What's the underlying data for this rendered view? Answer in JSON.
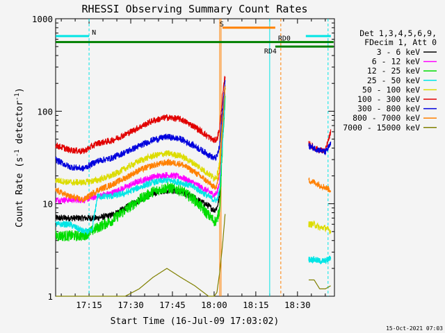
{
  "chart_data": {
    "type": "line",
    "title": "RHESSI Observing Summary Count Rates",
    "xlabel": "Start Time (16-Jul-09 17:03:02)",
    "ylabel": "Count Rate (s-1 detector-1)",
    "ylabel_parts": [
      "Count Rate (s",
      "-1",
      " detector",
      "-1",
      ")"
    ],
    "yscale": "log",
    "ylim": [
      1,
      1000
    ],
    "xlim": [
      "17:03",
      "18:43"
    ],
    "x_ticks": [
      "17:15",
      "17:30",
      "17:45",
      "18:00",
      "18:15",
      "18:30"
    ],
    "y_ticks": [
      "1",
      "10",
      "100",
      "1000"
    ],
    "legend_header": [
      "Det 1,3,4,5,6,9,",
      "FDecim 1, Att 0"
    ],
    "legend_position": "right",
    "footer_date": "15-Oct-2021 07:03",
    "gaps": [
      [
        "18:05",
        "18:34"
      ]
    ],
    "series": [
      {
        "name": "3 - 6 keV",
        "color": "#000000",
        "x": [
          "17:03",
          "17:08",
          "17:13",
          "17:18",
          "17:23",
          "17:28",
          "17:33",
          "17:38",
          "17:43",
          "17:48",
          "17:53",
          "17:58",
          "18:00",
          "18:01",
          "18:02",
          "18:03",
          "18:04"
        ],
        "y": [
          7.0,
          7.0,
          7.0,
          7.0,
          7.5,
          9,
          11,
          13,
          14,
          13.5,
          11.5,
          9.5,
          8.5,
          9.0,
          12,
          60,
          180
        ]
      },
      {
        "name": "6 - 12 keV",
        "color": "#ff00ff",
        "x": [
          "17:03",
          "17:08",
          "17:13",
          "17:18",
          "17:23",
          "17:28",
          "17:33",
          "17:38",
          "17:43",
          "17:48",
          "17:53",
          "17:58",
          "18:00",
          "18:01",
          "18:02",
          "18:03",
          "18:04"
        ],
        "y": [
          11,
          11,
          11,
          12,
          13,
          15,
          17.5,
          19.5,
          20.5,
          19.5,
          16.5,
          13.5,
          12.5,
          13,
          18,
          70,
          200
        ]
      },
      {
        "name": "12 - 25 keV",
        "color": "#00dd00",
        "x": [
          "17:03",
          "17:08",
          "17:13",
          "17:18",
          "17:23",
          "17:28",
          "17:33",
          "17:38",
          "17:43",
          "17:48",
          "17:53",
          "17:58",
          "18:00",
          "18:01",
          "18:02",
          "18:03",
          "18:04"
        ],
        "y": [
          4.5,
          4.5,
          4.5,
          5.5,
          6.5,
          8.5,
          11,
          13.5,
          15,
          14,
          11,
          7.5,
          6.5,
          6.5,
          9,
          40,
          150
        ]
      },
      {
        "name": "25 - 50 keV",
        "color": "#00e5e5",
        "x": [
          "17:03",
          "17:08",
          "17:13",
          "17:16",
          "17:18",
          "17:23",
          "17:28",
          "17:33",
          "17:38",
          "17:43",
          "17:48",
          "17:53",
          "17:58",
          "18:00",
          "18:01",
          "18:02",
          "18:03",
          "18:04",
          "18:34",
          "18:36",
          "18:38",
          "18:40",
          "18:42"
        ],
        "y": [
          6,
          6,
          5,
          5,
          12,
          12,
          13,
          15,
          17,
          18,
          17,
          15,
          12,
          11,
          11,
          14,
          45,
          160,
          2.5,
          2.5,
          2.4,
          2.4,
          2.6
        ]
      },
      {
        "name": "50 - 100 keV",
        "color": "#dcdc00",
        "x": [
          "17:03",
          "17:08",
          "17:13",
          "17:18",
          "17:23",
          "17:28",
          "17:33",
          "17:38",
          "17:43",
          "17:48",
          "17:53",
          "17:58",
          "18:00",
          "18:01",
          "18:02",
          "18:03",
          "18:04",
          "18:34",
          "18:36",
          "18:38",
          "18:40",
          "18:42"
        ],
        "y": [
          18,
          17,
          17,
          18,
          20,
          24,
          29,
          33,
          35,
          33,
          27,
          21,
          19,
          20,
          28,
          80,
          200,
          6,
          6,
          5.5,
          5.5,
          5
        ]
      },
      {
        "name": "100 - 300 keV",
        "color": "#e10000",
        "x": [
          "17:03",
          "17:08",
          "17:13",
          "17:18",
          "17:23",
          "17:28",
          "17:33",
          "17:38",
          "17:43",
          "17:48",
          "17:53",
          "17:58",
          "18:00",
          "18:01",
          "18:02",
          "18:03",
          "18:04",
          "18:34",
          "18:36",
          "18:38",
          "18:40",
          "18:42"
        ],
        "y": [
          43,
          38,
          37,
          45,
          48,
          56,
          67,
          79,
          86,
          82,
          68,
          53,
          48,
          50,
          65,
          140,
          250,
          45,
          40,
          38,
          37,
          60
        ]
      },
      {
        "name": "300 - 800 keV",
        "color": "#0000dd",
        "x": [
          "17:03",
          "17:08",
          "17:13",
          "17:18",
          "17:23",
          "17:28",
          "17:33",
          "17:38",
          "17:43",
          "17:48",
          "17:53",
          "17:58",
          "18:00",
          "18:01",
          "18:02",
          "18:03",
          "18:04",
          "18:34",
          "18:36",
          "18:38",
          "18:40",
          "18:42"
        ],
        "y": [
          30,
          25,
          24,
          29,
          31,
          36,
          42,
          49,
          53,
          50,
          42,
          34,
          31,
          32,
          42,
          100,
          220,
          42,
          40,
          38,
          36,
          44
        ]
      },
      {
        "name": "800 - 7000 keV",
        "color": "#ff8000",
        "x": [
          "17:03",
          "17:08",
          "17:13",
          "17:18",
          "17:23",
          "17:28",
          "17:33",
          "17:38",
          "17:43",
          "17:48",
          "17:53",
          "17:58",
          "18:00",
          "18:01",
          "18:02",
          "18:03",
          "18:04",
          "18:34",
          "18:36",
          "18:38",
          "18:40",
          "18:42"
        ],
        "y": [
          14,
          12,
          11,
          14,
          16,
          19,
          23,
          26,
          28,
          27,
          22,
          17,
          15,
          16,
          22,
          70,
          200,
          18,
          17,
          16,
          15,
          14
        ]
      },
      {
        "name": "7000 - 15000 keV",
        "color": "#808000",
        "x": [
          "17:03",
          "17:08",
          "17:13",
          "17:18",
          "17:23",
          "17:28",
          "17:33",
          "17:38",
          "17:43",
          "17:48",
          "17:53",
          "17:58",
          "18:00",
          "18:01",
          "18:02",
          "18:03",
          "18:04",
          "18:34",
          "18:36",
          "18:38",
          "18:40",
          "18:42"
        ],
        "y": [
          1,
          1,
          1,
          1,
          1,
          1,
          1.2,
          1.6,
          2.0,
          1.6,
          1.3,
          1,
          1,
          1.1,
          1.8,
          3.5,
          8,
          1.5,
          1.5,
          1.2,
          1.2,
          1.3
        ]
      }
    ],
    "state_bars": [
      {
        "label": "N",
        "color": "#00e5e5",
        "y": 650,
        "segments": [
          [
            "17:03",
            "17:15"
          ],
          [
            "18:33",
            "18:42"
          ]
        ],
        "label_at": "17:16"
      },
      {
        "label": "S",
        "color": "#ff8000",
        "y": 800,
        "segments": [
          [
            "18:03",
            "18:22"
          ]
        ],
        "label_at": "18:02"
      },
      {
        "label": "RD0",
        "color": "#008000",
        "y": 560,
        "segments": [
          [
            "17:03",
            "18:43"
          ]
        ],
        "label_at": "18:23"
      },
      {
        "label": "RD4",
        "color": "#008000",
        "y": 500,
        "segments": [
          [
            "18:22",
            "18:43"
          ]
        ],
        "label_at": "18:18"
      }
    ],
    "markers": [
      {
        "x": "17:15",
        "color": "#00e5e5",
        "style": "dashed"
      },
      {
        "x": "18:02",
        "color": "#ff8000",
        "style": "solid"
      },
      {
        "x": "18:02.5",
        "color": "#ff8000",
        "style": "solid"
      },
      {
        "x": "18:20",
        "color": "#00e5e5",
        "style": "solid"
      },
      {
        "x": "18:24",
        "color": "#ff8000",
        "style": "dashed"
      },
      {
        "x": "18:41",
        "color": "#00e5e5",
        "style": "dashed"
      }
    ]
  }
}
